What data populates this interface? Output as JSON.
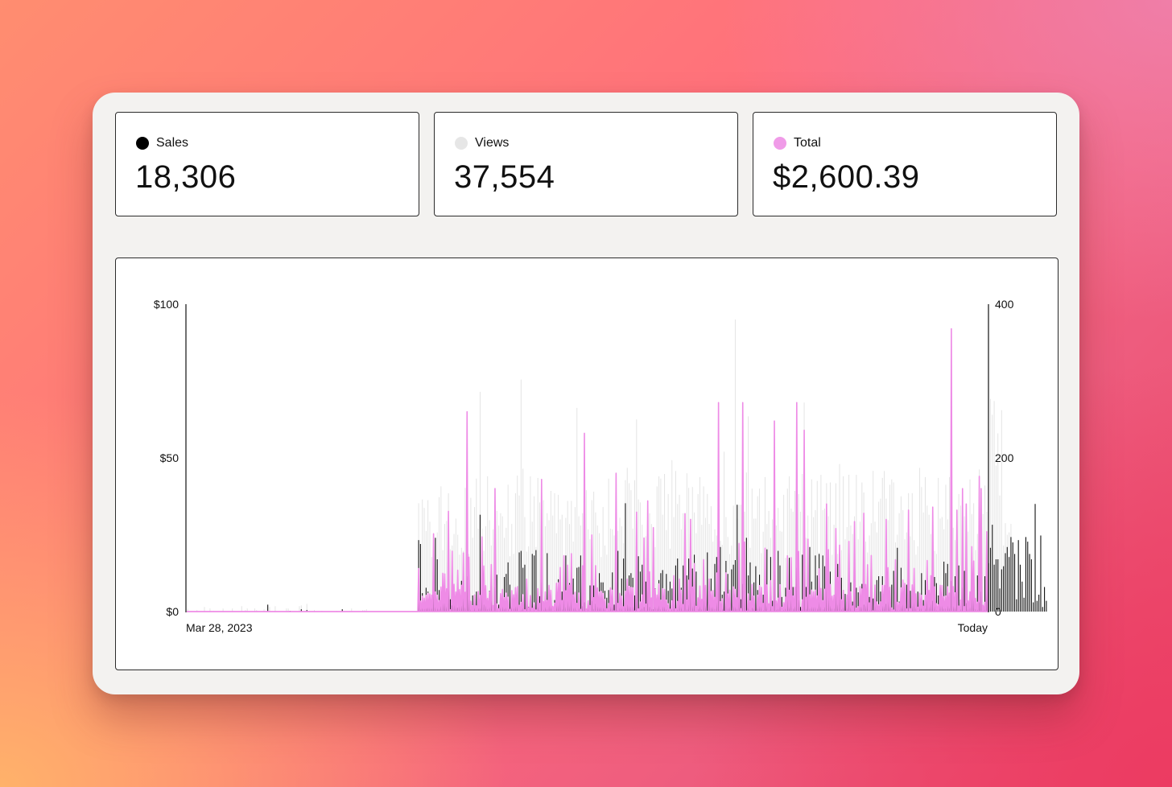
{
  "stats": [
    {
      "label": "Sales",
      "value": "18,306",
      "dot_color": "#000000"
    },
    {
      "label": "Views",
      "value": "37,554",
      "dot_color": "#e6e6e6"
    },
    {
      "label": "Total",
      "value": "$2,600.39",
      "dot_color": "#f09be8"
    }
  ],
  "colors": {
    "sales": "#111111",
    "views": "#e4e4e4",
    "total": "#ee8be6",
    "axis": "#111111",
    "card_border": "#2b2b2b",
    "window_bg": "#f3f2f0"
  },
  "chart_data": {
    "type": "bar",
    "title": "",
    "xlabel": "",
    "ylabel": "",
    "x_start_label": "Mar 28, 2023",
    "x_end_label": "Today",
    "y_left": {
      "ticks": [
        "$0",
        "$50",
        "$100"
      ],
      "range": [
        0,
        100
      ],
      "unit": "$"
    },
    "y_right": {
      "ticks": [
        "0",
        "200",
        "400"
      ],
      "range": [
        0,
        400
      ]
    },
    "series": [
      {
        "name": "Sales",
        "axis": "right",
        "style": "bar"
      },
      {
        "name": "Views",
        "axis": "right",
        "style": "bar"
      },
      {
        "name": "Total",
        "axis": "left",
        "style": "line"
      }
    ],
    "n_days": 430,
    "quiet_days": 124,
    "views_daily": [
      4,
      0,
      0,
      0,
      0,
      2,
      0,
      0,
      0,
      6,
      0,
      0,
      4,
      0,
      1,
      0,
      0,
      0,
      0,
      4,
      0,
      0,
      0,
      0,
      4,
      0,
      0,
      0,
      0,
      7,
      0,
      2,
      4,
      0,
      0,
      0,
      4,
      2,
      0,
      0,
      0,
      3,
      0,
      7,
      6,
      0,
      0,
      7,
      0,
      0,
      0,
      0,
      0,
      4,
      4,
      0,
      0,
      0,
      0,
      0,
      7,
      8,
      0,
      0,
      10,
      0,
      0,
      0,
      2,
      0,
      0,
      0,
      1,
      0,
      0,
      0,
      0,
      0,
      0,
      0,
      1,
      0,
      0,
      0,
      0,
      0,
      0,
      1,
      4,
      0,
      0,
      0,
      0,
      0,
      2,
      2,
      3,
      0,
      0,
      0,
      0,
      0,
      0,
      0,
      0,
      0,
      0,
      0,
      0,
      0,
      0,
      0,
      0,
      0,
      0,
      0,
      0,
      0,
      0,
      0,
      0,
      0,
      0,
      0,
      141,
      72,
      146,
      135,
      105,
      145,
      117,
      71,
      81,
      73,
      103,
      149,
      163,
      80,
      114,
      118,
      154,
      81,
      86,
      101,
      121,
      100,
      74,
      83,
      79,
      161,
      102,
      75,
      148,
      96,
      136,
      173,
      108,
      286,
      108,
      79,
      111,
      176,
      119,
      86,
      107,
      161,
      131,
      112,
      128,
      124,
      96,
      109,
      165,
      72,
      114,
      75,
      154,
      177,
      151,
      302,
      186,
      123,
      78,
      85,
      176,
      117,
      150,
      84,
      174,
      142,
      139,
      145,
      111,
      128,
      119,
      157,
      125,
      154,
      102,
      152,
      120,
      126,
      71,
      122,
      144,
      114,
      144,
      91,
      136,
      265,
      124,
      112,
      128,
      163,
      158,
      107,
      94,
      145,
      156,
      129,
      112,
      102,
      71,
      136,
      86,
      74,
      173,
      108,
      107,
      99,
      138,
      105,
      122,
      111,
      89,
      171,
      187,
      167,
      158,
      108,
      171,
      250,
      146,
      142,
      113,
      90,
      98,
      138,
      128,
      114,
      93,
      84,
      163,
      176,
      173,
      126,
      179,
      106,
      153,
      82,
      197,
      123,
      183,
      140,
      152,
      107,
      128,
      81,
      180,
      161,
      87,
      162,
      129,
      102,
      153,
      175,
      113,
      163,
      122,
      153,
      114,
      137,
      91,
      107,
      99,
      110,
      92,
      87,
      208,
      123,
      97,
      75,
      86,
      138,
      380,
      121,
      139,
      139,
      108,
      130,
      181,
      254,
      83,
      160,
      121,
      121,
      150,
      160,
      76,
      104,
      175,
      114,
      131,
      96,
      120,
      93,
      112,
      135,
      105,
      104,
      152,
      70,
      160,
      176,
      134,
      130,
      157,
      82,
      153,
      130,
      179,
      272,
      96,
      125,
      73,
      172,
      123,
      132,
      170,
      77,
      178,
      132,
      134,
      167,
      124,
      168,
      74,
      113,
      167,
      75,
      192,
      80,
      176,
      94,
      110,
      178,
      112,
      101,
      124,
      178,
      94,
      117,
      168,
      155,
      91,
      77,
      99,
      115,
      183,
      117,
      103,
      143,
      147,
      174,
      183,
      147,
      119,
      165,
      172,
      168,
      90,
      100,
      128,
      150,
      132,
      94,
      103,
      154,
      98,
      154,
      93,
      74,
      85,
      187,
      162,
      129,
      175,
      138,
      126,
      101,
      73,
      79,
      75,
      174,
      121,
      123,
      107,
      165,
      120,
      175,
      107,
      109,
      93,
      108,
      153,
      138,
      69,
      124,
      87,
      104,
      172,
      127,
      141,
      80,
      101,
      185,
      121,
      127,
      164,
      130,
      237,
      277,
      256,
      274,
      190,
      232,
      151,
      262,
      86,
      115,
      100,
      103,
      114
    ],
    "sales_daily": [
      0,
      0,
      0,
      0,
      0,
      0,
      0,
      0,
      0,
      0,
      0,
      0,
      0,
      0,
      0,
      0,
      0,
      0,
      0,
      0,
      0,
      0,
      0,
      0,
      0,
      0,
      0,
      0,
      0,
      0,
      0,
      0,
      0,
      0,
      0,
      0,
      0,
      0,
      0,
      0,
      0,
      0,
      0,
      9,
      0,
      0,
      0,
      0,
      0,
      0,
      0,
      0,
      0,
      0,
      0,
      1,
      0,
      0,
      0,
      0,
      0,
      3,
      0,
      0,
      2,
      0,
      0,
      0,
      0,
      0,
      0,
      0,
      0,
      0,
      0,
      0,
      0,
      0,
      0,
      0,
      0,
      0,
      0,
      3,
      0,
      0,
      0,
      0,
      0,
      0,
      0,
      0,
      0,
      0,
      0,
      0,
      0,
      0,
      0,
      0,
      0,
      0,
      0,
      0,
      0,
      0,
      0,
      0,
      0,
      0,
      0,
      0,
      0,
      0,
      0,
      0,
      0,
      0,
      0,
      0,
      0,
      0,
      0,
      0,
      93,
      88,
      24,
      13,
      31,
      26,
      7,
      16,
      93,
      96,
      68,
      28,
      30,
      12,
      29,
      22,
      31,
      16,
      8,
      24,
      14,
      5,
      21,
      40,
      40,
      20,
      46,
      35,
      4,
      21,
      16,
      26,
      4,
      126,
      54,
      9,
      14,
      9,
      27,
      31,
      6,
      32,
      48,
      9,
      8,
      24,
      45,
      49,
      64,
      35,
      19,
      15,
      23,
      33,
      77,
      79,
      57,
      61,
      10,
      6,
      15,
      75,
      73,
      80,
      6,
      20,
      73,
      6,
      7,
      76,
      30,
      7,
      5,
      15,
      19,
      42,
      29,
      26,
      37,
      73,
      45,
      37,
      28,
      43,
      25,
      57,
      58,
      73,
      7,
      12,
      3,
      9,
      34,
      14,
      34,
      10,
      10,
      50,
      38,
      38,
      27,
      18,
      28,
      10,
      51,
      9,
      57,
      79,
      23,
      43,
      69,
      141,
      21,
      47,
      50,
      44,
      21,
      75,
      72,
      52,
      61,
      6,
      39,
      78,
      6,
      9,
      3,
      30,
      7,
      41,
      50,
      54,
      18,
      49,
      27,
      39,
      30,
      39,
      60,
      69,
      31,
      31,
      60,
      40,
      47,
      69,
      35,
      56,
      74,
      52,
      18,
      20,
      16,
      20,
      20,
      77,
      19,
      43,
      7,
      62,
      71,
      61,
      84,
      22,
      26,
      66,
      49,
      20,
      55,
      61,
      67,
      139,
      73,
      16,
      36,
      61,
      96,
      47,
      64,
      5,
      38,
      59,
      28,
      48,
      20,
      22,
      71,
      81,
      9,
      71,
      14,
      77,
      8,
      79,
      60,
      19,
      6,
      31,
      66,
      70,
      55,
      32,
      30,
      57,
      15,
      6,
      74,
      78,
      32,
      74,
      84,
      39,
      19,
      73,
      47,
      75,
      23,
      73,
      59,
      88,
      34,
      52,
      12,
      11,
      34,
      62,
      53,
      44,
      28,
      23,
      21,
      76,
      38,
      13,
      25,
      31,
      25,
      6,
      36,
      9,
      17,
      19,
      19,
      16,
      17,
      8,
      41,
      46,
      26,
      46,
      14,
      10,
      49,
      28,
      35,
      53,
      23,
      83,
      13,
      57,
      10,
      20,
      35,
      35,
      27,
      25,
      25,
      6,
      26,
      9,
      50,
      15,
      41,
      64,
      16,
      17,
      14,
      45,
      37,
      21,
      31,
      12,
      65,
      50,
      62,
      12,
      40,
      19,
      46,
      73,
      60,
      15,
      31,
      53,
      11,
      10,
      20,
      23,
      26,
      5,
      47,
      12,
      26,
      8,
      46,
      28,
      63,
      83,
      113,
      61,
      68,
      68,
      30,
      55,
      59,
      76,
      84,
      71,
      97,
      90,
      75,
      16,
      93,
      61,
      39,
      18,
      97,
      91,
      75,
      68,
      12,
      140,
      14,
      22,
      99,
      6,
      32,
      14
    ]
  }
}
